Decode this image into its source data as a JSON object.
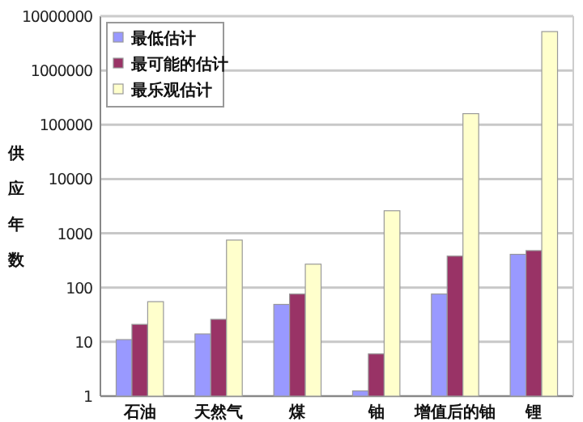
{
  "chart_data": {
    "type": "bar",
    "ylabel": "供应年数",
    "categories": [
      "石油",
      "天然气",
      "煤",
      "铀",
      "增值后的铀",
      "锂"
    ],
    "series": [
      {
        "name": "最低估计",
        "color": "#9999ff",
        "values": [
          11,
          14,
          49,
          1.25,
          76,
          410
        ]
      },
      {
        "name": "最可能的估计",
        "color": "#993366",
        "values": [
          21,
          26,
          76,
          6,
          380,
          480
        ]
      },
      {
        "name": "最乐观估计",
        "color": "#ffffcc",
        "values": [
          55,
          750,
          270,
          2600,
          160000,
          5200000
        ]
      }
    ],
    "log": true,
    "ylim": [
      1,
      10000000
    ],
    "yticks": [
      1,
      10,
      100,
      1000,
      10000,
      100000,
      1000000,
      10000000
    ],
    "grid": "y",
    "legend": "top left"
  }
}
